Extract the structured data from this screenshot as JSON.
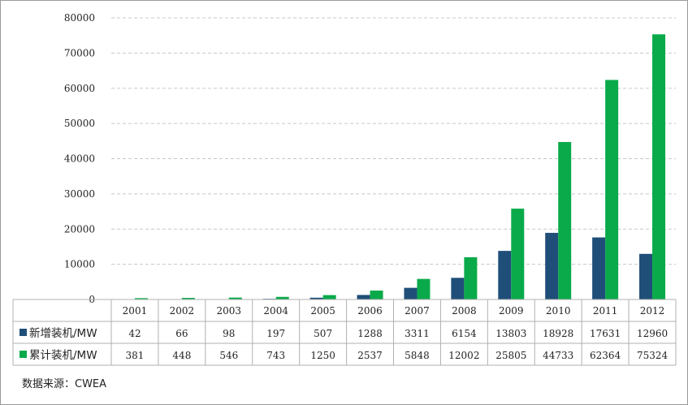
{
  "chart_data": {
    "type": "bar",
    "categories": [
      "2001",
      "2002",
      "2003",
      "2004",
      "2005",
      "2006",
      "2007",
      "2008",
      "2009",
      "2010",
      "2011",
      "2012"
    ],
    "series": [
      {
        "name": "新增装机/MW",
        "color": "#1f4e79",
        "values": [
          42,
          66,
          98,
          197,
          507,
          1288,
          3311,
          6154,
          13803,
          18928,
          17631,
          12960
        ]
      },
      {
        "name": "累计装机/MW",
        "color": "#0aaa4a",
        "values": [
          381,
          448,
          546,
          743,
          1250,
          2537,
          5848,
          12002,
          25805,
          44733,
          62364,
          75324
        ]
      }
    ],
    "ylim": [
      0,
      80000
    ],
    "yticks": [
      0,
      10000,
      20000,
      30000,
      40000,
      50000,
      60000,
      70000,
      80000
    ],
    "grid": true,
    "legend": "data-table"
  },
  "source_note": "数据来源：CWEA"
}
